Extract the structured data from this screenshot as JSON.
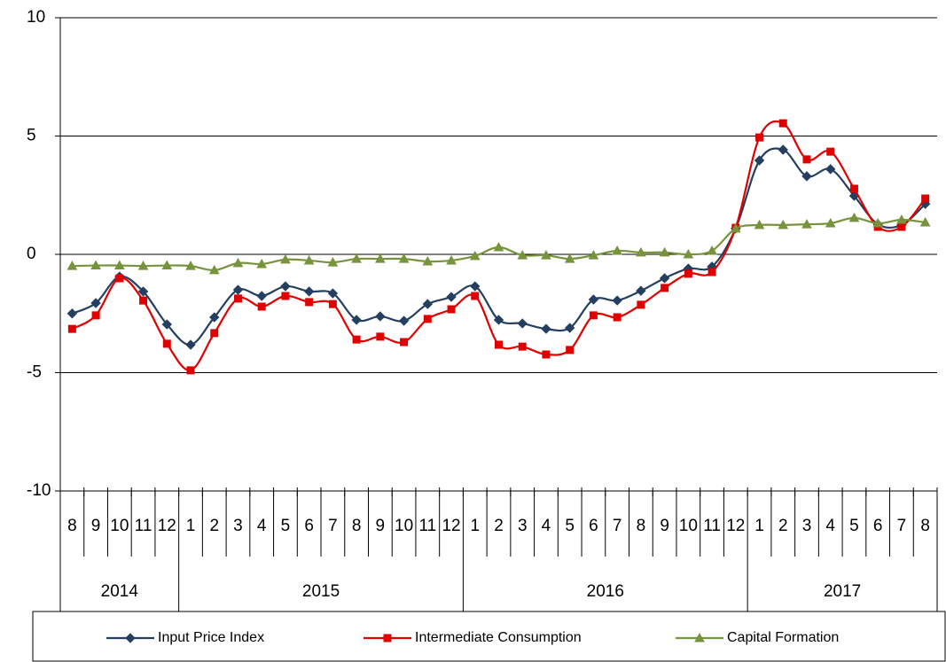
{
  "chart_data": {
    "type": "line",
    "categories": [
      "8",
      "9",
      "10",
      "11",
      "12",
      "1",
      "2",
      "3",
      "4",
      "5",
      "6",
      "7",
      "8",
      "9",
      "10",
      "11",
      "12",
      "1",
      "2",
      "3",
      "4",
      "5",
      "6",
      "7",
      "8",
      "9",
      "10",
      "11",
      "12",
      "1",
      "2",
      "3",
      "4",
      "5",
      "6",
      "7",
      "8"
    ],
    "category_groups": [
      "2014",
      null,
      null,
      null,
      null,
      "2015",
      null,
      null,
      null,
      null,
      null,
      null,
      null,
      null,
      null,
      null,
      null,
      "2016",
      null,
      null,
      null,
      null,
      null,
      null,
      null,
      null,
      null,
      null,
      null,
      "2017",
      null,
      null,
      null,
      null,
      null,
      null,
      null
    ],
    "series": [
      {
        "name": "Input Price Index",
        "color": "#243f60",
        "marker": "diamond",
        "values": [
          -2.5,
          -2.06,
          -0.94,
          -1.57,
          -2.96,
          -3.82,
          -2.66,
          -1.5,
          -1.76,
          -1.35,
          -1.57,
          -1.65,
          -2.77,
          -2.62,
          -2.81,
          -2.1,
          -1.8,
          -1.35,
          -2.77,
          -2.92,
          -3.15,
          -3.11,
          -1.91,
          -1.95,
          -1.54,
          -1.01,
          -0.6,
          -0.52,
          1.09,
          3.97,
          4.42,
          3.3,
          3.6,
          2.47,
          1.27,
          1.24,
          2.13
        ]
      },
      {
        "name": "Intermediate Consumption",
        "color": "#e00000",
        "marker": "square",
        "values": [
          -3.15,
          -2.58,
          -1.01,
          -1.95,
          -3.78,
          -4.9,
          -3.33,
          -1.87,
          -2.21,
          -1.76,
          -2.02,
          -2.1,
          -3.6,
          -3.48,
          -3.71,
          -2.73,
          -2.32,
          -1.76,
          -3.82,
          -3.9,
          -4.23,
          -4.04,
          -2.58,
          -2.66,
          -2.13,
          -1.42,
          -0.82,
          -0.75,
          1.12,
          4.94,
          5.54,
          4.01,
          4.34,
          2.77,
          1.16,
          1.16,
          2.36
        ]
      },
      {
        "name": "Capital Formation",
        "color": "#77933c",
        "marker": "triangle",
        "values": [
          -0.49,
          -0.47,
          -0.47,
          -0.49,
          -0.47,
          -0.49,
          -0.67,
          -0.37,
          -0.41,
          -0.22,
          -0.26,
          -0.34,
          -0.19,
          -0.19,
          -0.19,
          -0.3,
          -0.26,
          -0.07,
          0.3,
          -0.04,
          -0.04,
          -0.19,
          -0.04,
          0.15,
          0.08,
          0.08,
          0.0,
          0.15,
          1.09,
          1.24,
          1.24,
          1.27,
          1.31,
          1.54,
          1.31,
          1.46,
          1.35
        ]
      }
    ],
    "ylim": [
      -10,
      10
    ],
    "yticks": [
      -10,
      -5,
      0,
      5,
      10
    ],
    "grid": true,
    "smooth": true,
    "legend": "bottom"
  }
}
